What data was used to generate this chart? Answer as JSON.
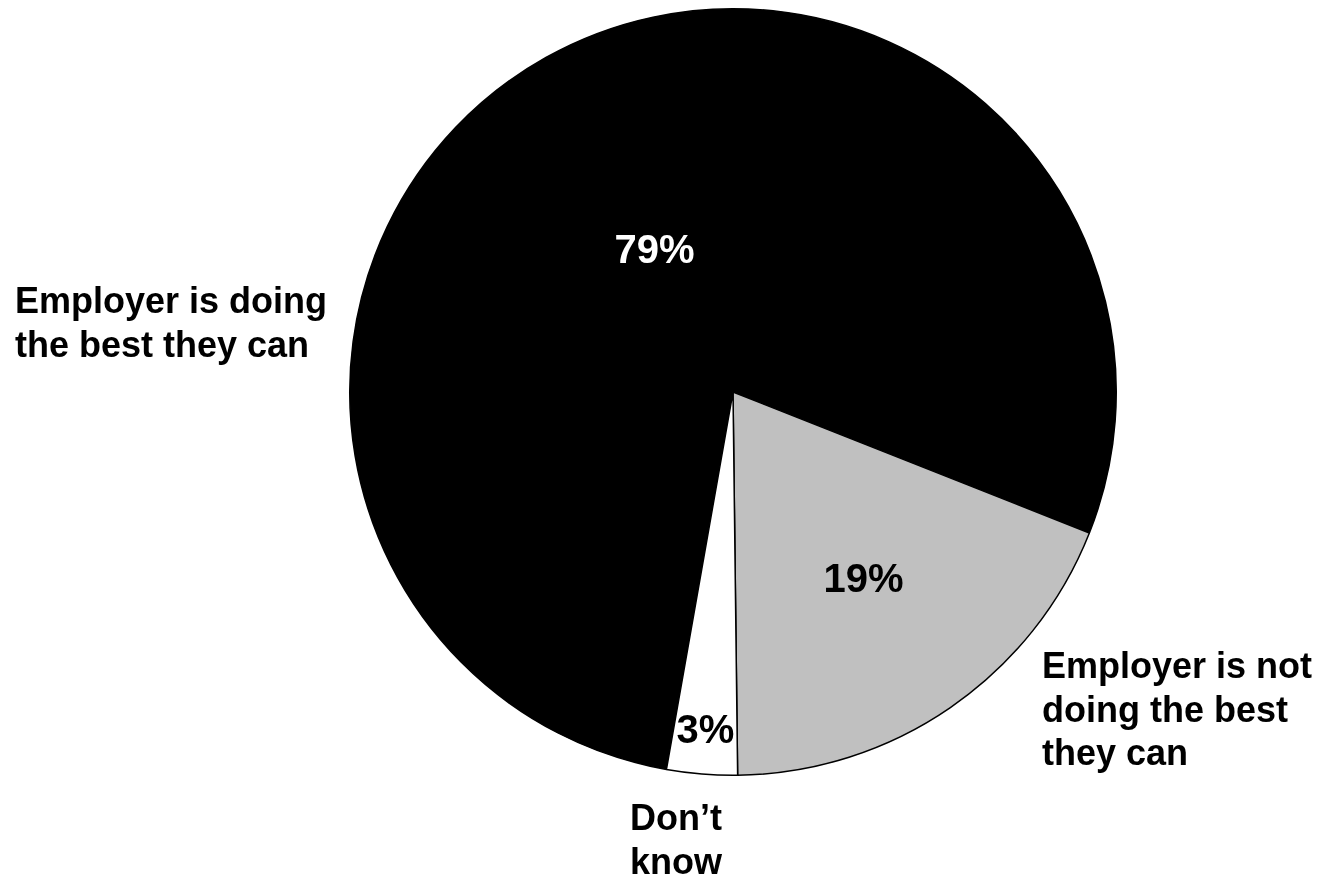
{
  "chart_data": {
    "type": "pie",
    "categories": [
      "Employer is doing the best they can",
      "Employer is not doing the best they can",
      "Don’t know"
    ],
    "values": [
      79,
      19,
      3
    ],
    "colors": [
      "#000000",
      "#c0c0c0",
      "#ffffff"
    ],
    "value_labels": [
      "79%",
      "19%",
      "3%"
    ]
  }
}
